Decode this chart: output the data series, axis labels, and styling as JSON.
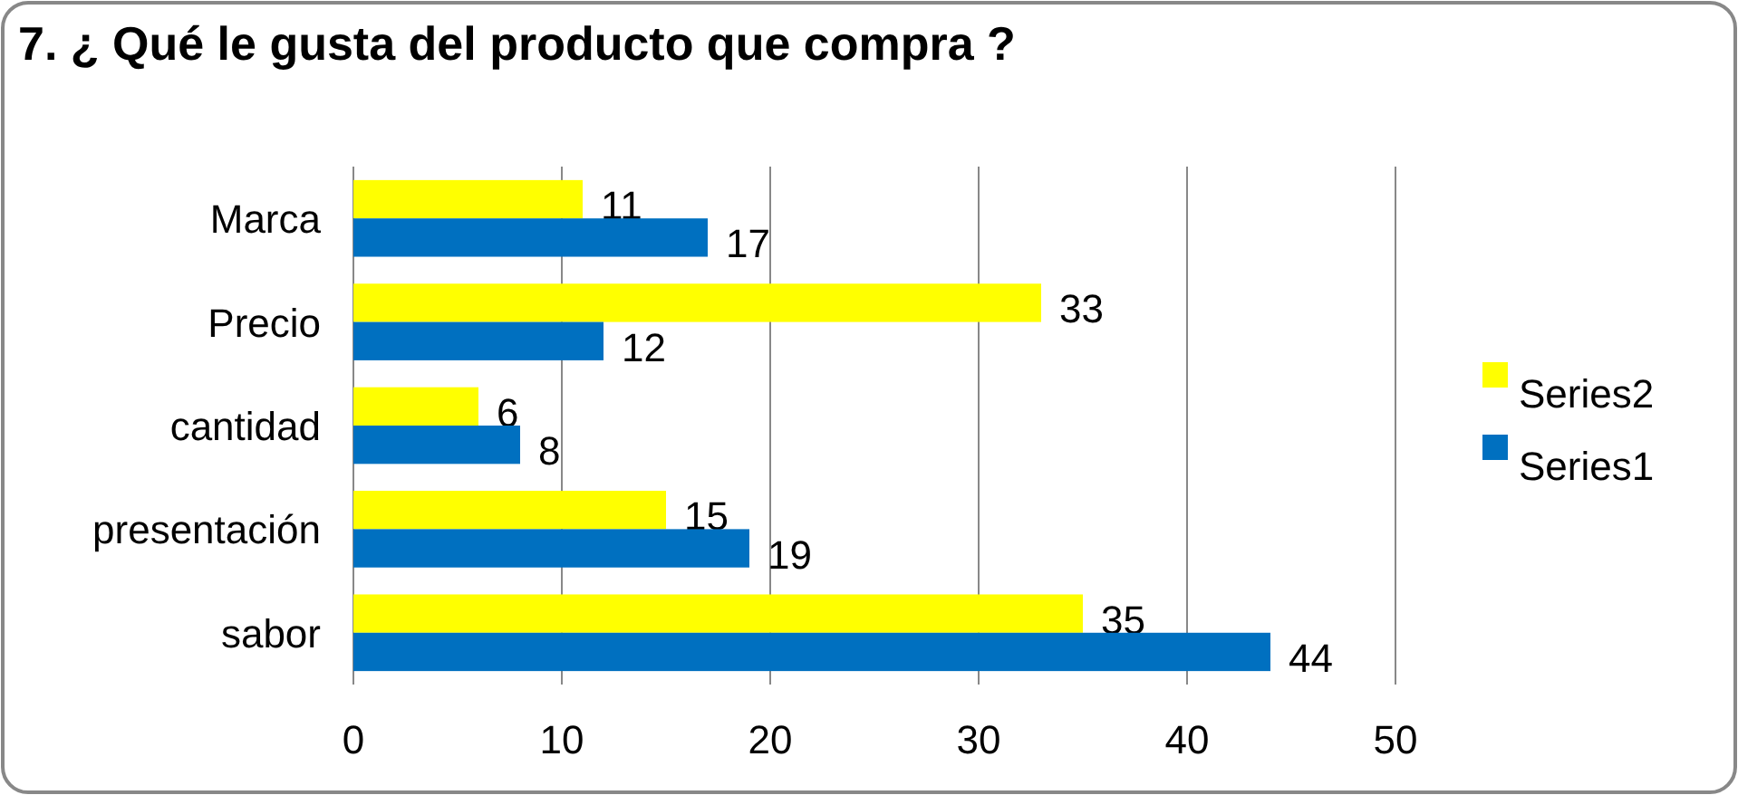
{
  "chart_data": {
    "type": "bar",
    "orientation": "horizontal",
    "title": "7. ¿ Qué le gusta del producto que compra ?",
    "categories": [
      "Marca",
      "Precio",
      "cantidad",
      "presentación",
      "sabor"
    ],
    "series": [
      {
        "name": "Series2",
        "color": "#ffff00",
        "values": [
          11,
          33,
          6,
          15,
          35
        ]
      },
      {
        "name": "Series1",
        "color": "#0070c0",
        "values": [
          17,
          12,
          8,
          19,
          44
        ]
      }
    ],
    "xlim": [
      0,
      50
    ],
    "xticks": [
      0,
      10,
      20,
      30,
      40,
      50
    ],
    "grid": "x",
    "legend": "right",
    "data_labels": true
  }
}
